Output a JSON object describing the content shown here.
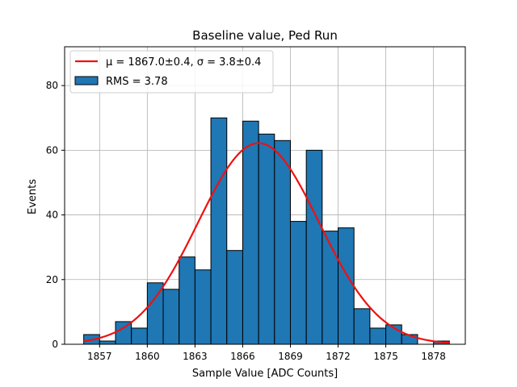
{
  "chart_data": {
    "type": "bar",
    "title": "Baseline value, Ped Run",
    "xlabel": "Sample Value [ADC Counts]",
    "ylabel": "Events",
    "xlim": [
      1854.8,
      1880.0
    ],
    "ylim": [
      0,
      92
    ],
    "grid": true,
    "legend_position": "top-left",
    "xticks": [
      1857,
      1860,
      1863,
      1866,
      1869,
      1872,
      1875,
      1878
    ],
    "yticks": [
      0,
      20,
      40,
      60,
      80
    ],
    "bins": {
      "left_edges": [
        1856.0,
        1857.0,
        1858.0,
        1859.0,
        1860.0,
        1861.0,
        1862.0,
        1863.0,
        1864.0,
        1865.0,
        1866.0,
        1867.0,
        1868.0,
        1869.0,
        1870.0,
        1871.0,
        1872.0,
        1873.0,
        1874.0,
        1875.0,
        1876.0,
        1877.0,
        1878.0
      ],
      "width": 1.0,
      "counts": [
        3,
        1,
        7,
        5,
        19,
        17,
        27,
        23,
        70,
        29,
        69,
        65,
        63,
        38,
        60,
        35,
        36,
        11,
        5,
        6,
        3,
        0,
        1
      ]
    },
    "fit": {
      "mu": 1867.0,
      "sigma": 3.8,
      "amplitude": 62.2,
      "x_range": [
        1856.0,
        1879.0
      ],
      "label": "μ = 1867.0±0.4, σ = 3.8±0.4"
    },
    "series": [
      {
        "name": "RMS = 3.78",
        "kind": "histogram"
      },
      {
        "name": "μ = 1867.0±0.4, σ = 3.8±0.4",
        "kind": "gaussian-fit"
      }
    ]
  },
  "colors": {
    "bar_fill": "#1f77b4",
    "bar_edge": "#000000",
    "fit_line": "#ee1111",
    "grid": "#b0b0b0"
  },
  "legend": {
    "fit_label": "μ = 1867.0±0.4, σ = 3.8±0.4",
    "hist_label": "RMS = 3.78"
  }
}
